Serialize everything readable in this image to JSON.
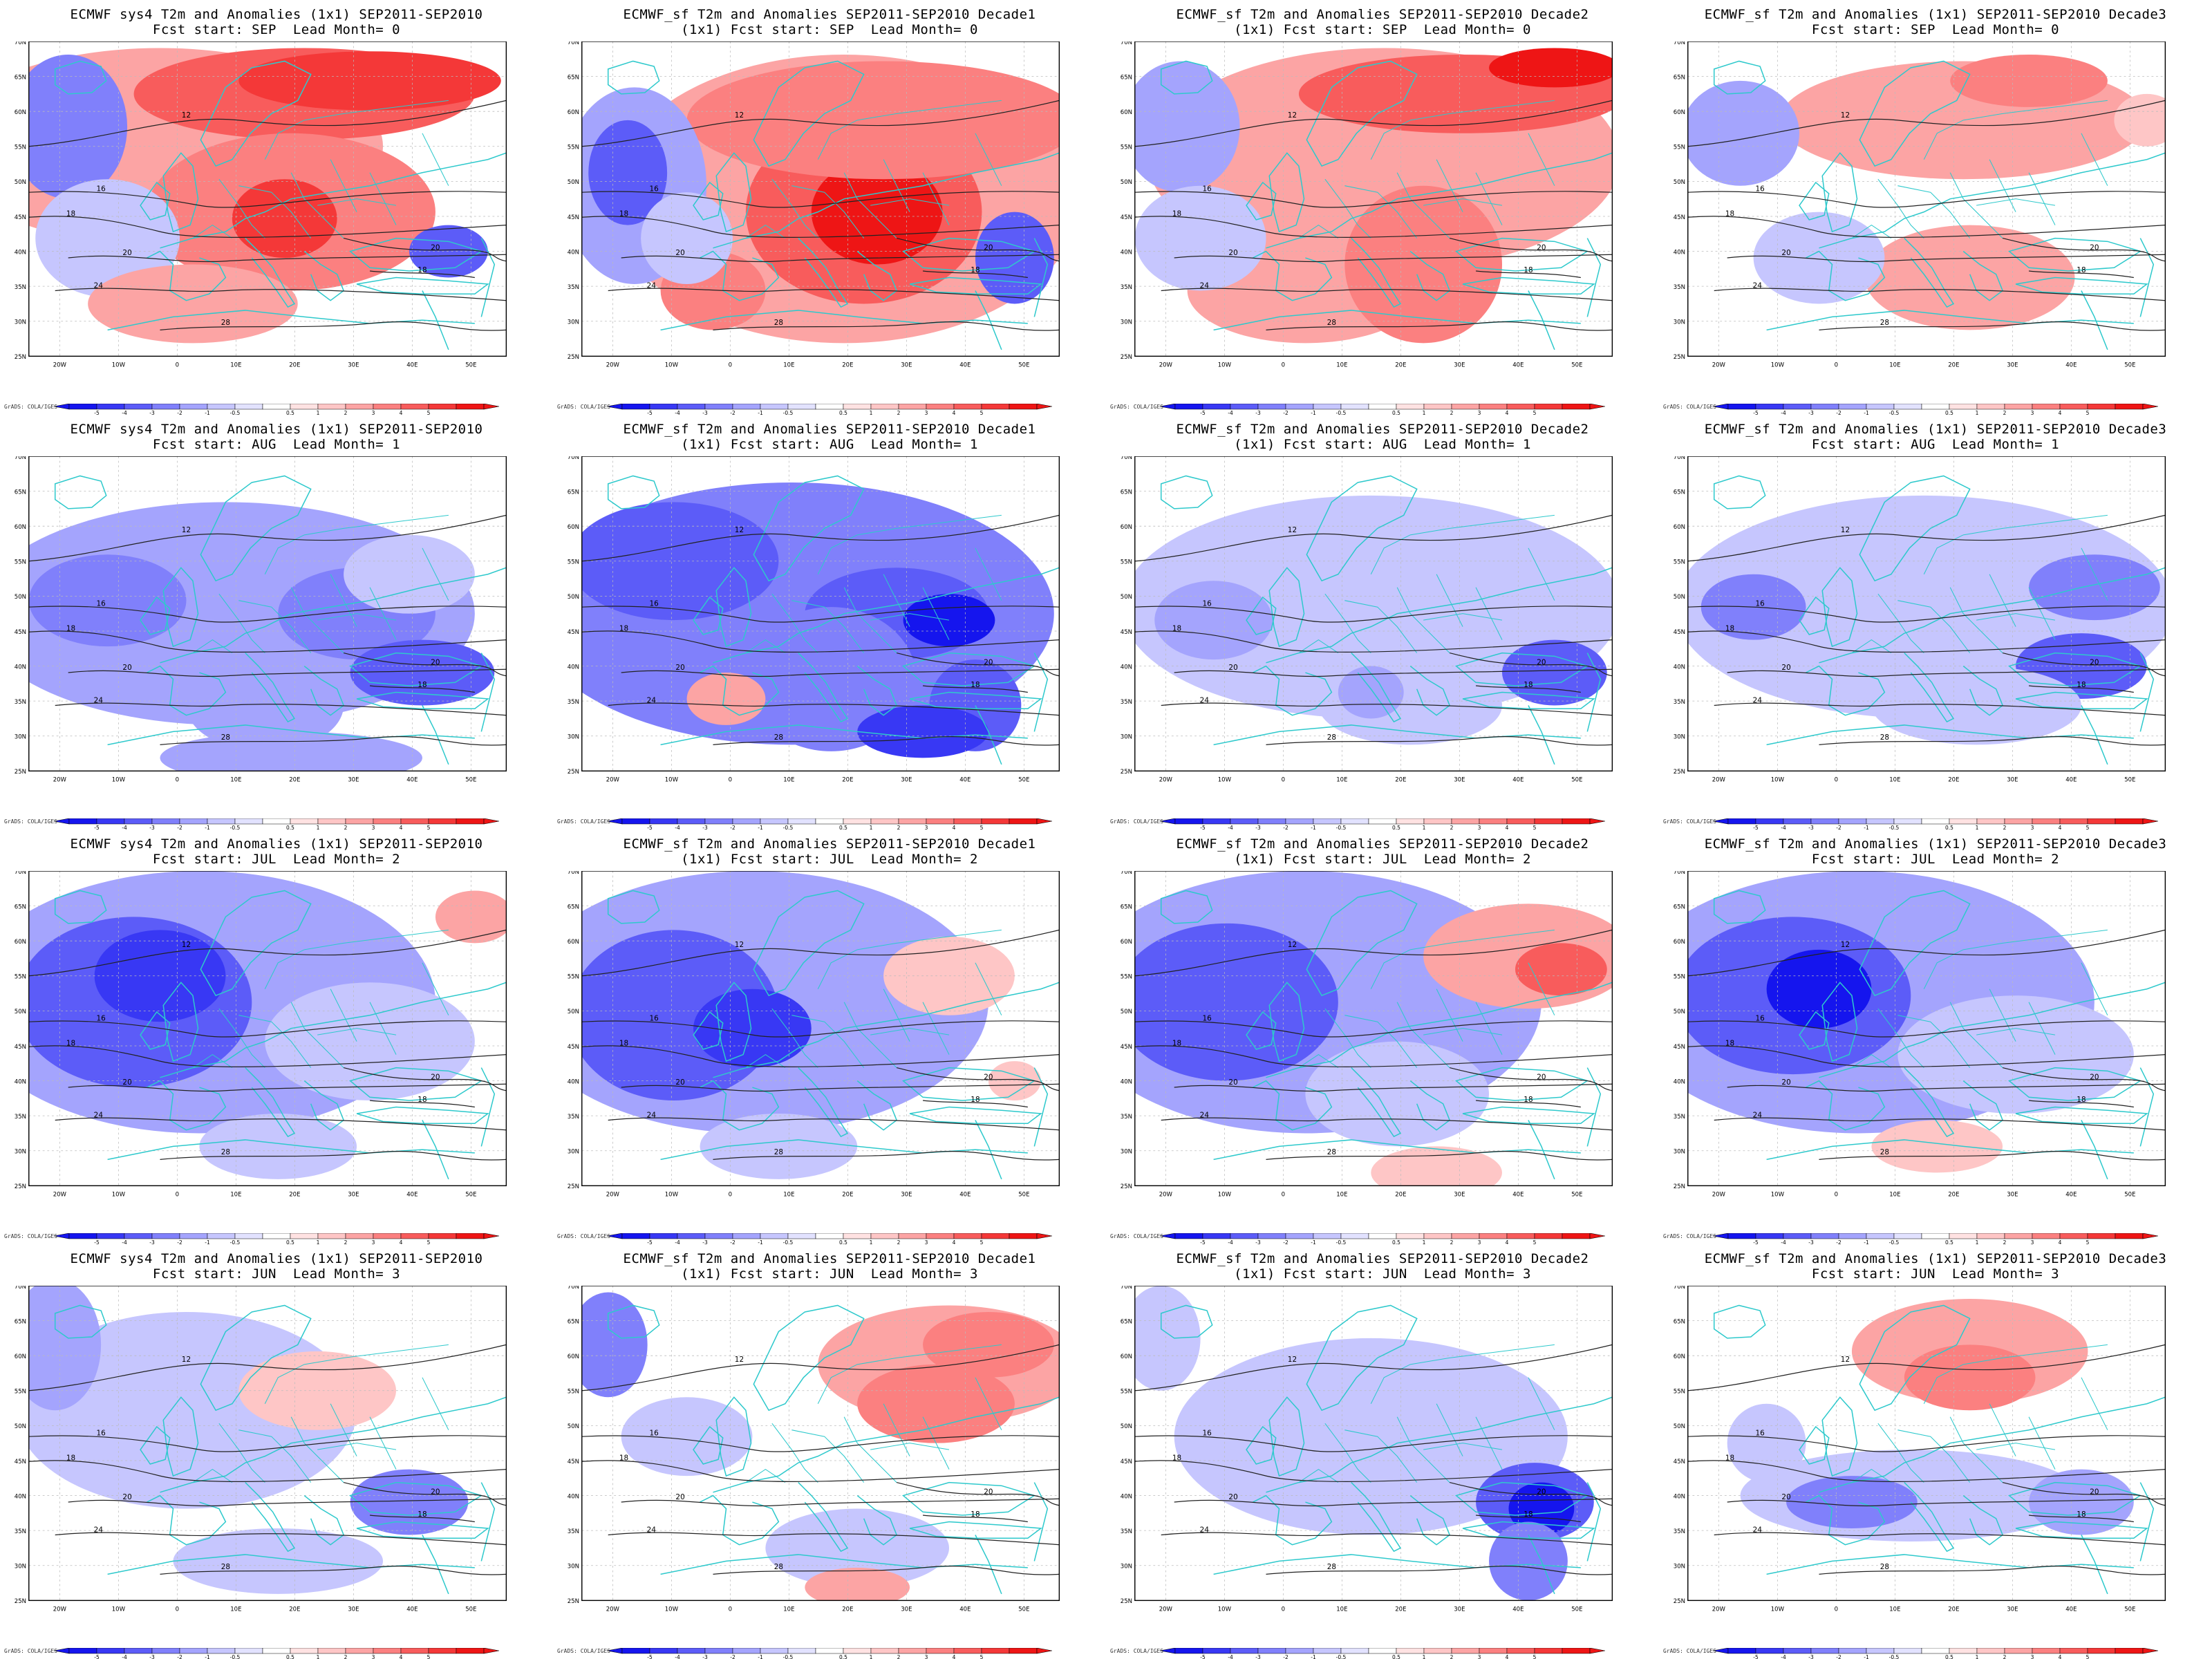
{
  "map_panels": [
    {
      "title1": "ECMWF sys4 T2m and Anomalies (1x1) SEP2011-SEP2010",
      "title2": "Fcst start: SEP  Lead Month= 0"
    },
    {
      "title1": "ECMWF_sf T2m and Anomalies SEP2011-SEP2010 Decade1",
      "title2": "(1x1) Fcst start: SEP  Lead Month= 0"
    },
    {
      "title1": "ECMWF_sf T2m and Anomalies SEP2011-SEP2010 Decade2",
      "title2": "(1x1) Fcst start: SEP  Lead Month= 0"
    },
    {
      "title1": "ECMWF_sf T2m and Anomalies (1x1) SEP2011-SEP2010 Decade3",
      "title2": "Fcst start: SEP  Lead Month= 0"
    },
    {
      "title1": "ECMWF sys4 T2m and Anomalies (1x1) SEP2011-SEP2010",
      "title2": "Fcst start: AUG  Lead Month= 1"
    },
    {
      "title1": "ECMWF_sf T2m and Anomalies SEP2011-SEP2010 Decade1",
      "title2": "(1x1) Fcst start: AUG  Lead Month= 1"
    },
    {
      "title1": "ECMWF_sf T2m and Anomalies SEP2011-SEP2010 Decade2",
      "title2": "(1x1) Fcst start: AUG  Lead Month= 1"
    },
    {
      "title1": "ECMWF_sf T2m and Anomalies (1x1) SEP2011-SEP2010 Decade3",
      "title2": "Fcst start: AUG  Lead Month= 1"
    },
    {
      "title1": "ECMWF sys4 T2m and Anomalies (1x1) SEP2011-SEP2010",
      "title2": "Fcst start: JUL  Lead Month= 2"
    },
    {
      "title1": "ECMWF_sf T2m and Anomalies SEP2011-SEP2010 Decade1",
      "title2": "(1x1) Fcst start: JUL  Lead Month= 2"
    },
    {
      "title1": "ECMWF_sf T2m and Anomalies SEP2011-SEP2010 Decade2",
      "title2": "(1x1) Fcst start: JUL  Lead Month= 2"
    },
    {
      "title1": "ECMWF_sf T2m and Anomalies (1x1) SEP2011-SEP2010 Decade3",
      "title2": "Fcst start: JUL  Lead Month= 2"
    },
    {
      "title1": "ECMWF sys4 T2m and Anomalies (1x1) SEP2011-SEP2010",
      "title2": "Fcst start: JUN  Lead Month= 3"
    },
    {
      "title1": "ECMWF_sf T2m and Anomalies SEP2011-SEP2010 Decade1",
      "title2": "(1x1) Fcst start: JUN  Lead Month= 3"
    },
    {
      "title1": "ECMWF_sf T2m and Anomalies SEP2011-SEP2010 Decade2",
      "title2": "(1x1) Fcst start: JUN  Lead Month= 3"
    },
    {
      "title1": "ECMWF_sf T2m and Anomalies (1x1) SEP2011-SEP2010 Decade3",
      "title2": "Fcst start: JUN  Lead Month= 3"
    }
  ],
  "lat_labels": [
    "70N",
    "65N",
    "60N",
    "55N",
    "50N",
    "45N",
    "40N",
    "35N",
    "30N",
    "25N"
  ],
  "lon_labels": [
    "20W",
    "10W",
    "0",
    "10E",
    "20E",
    "30E",
    "40E",
    "50E"
  ],
  "colorbar_labels": [
    "-5",
    "-4",
    "-3",
    "-2",
    "-1",
    "-0.5",
    "0.5",
    "1",
    "2",
    "3",
    "4",
    "5"
  ],
  "contour_labels": [
    "12",
    "16",
    "18",
    "20",
    "24",
    "28"
  ],
  "grads_label": "GrADS: COLA/IGES",
  "colors": {
    "coast": "#2ec9cc",
    "contour": "#222222",
    "blue": [
      "#1515ee",
      "#3838f4",
      "#5c5cf8",
      "#8080fb",
      "#a4a4fd",
      "#c6c6fe",
      "#e2e2ff"
    ],
    "red": [
      "#ffe2e2",
      "#fec6c6",
      "#fca4a4",
      "#fb8080",
      "#f85c5c",
      "#f43838",
      "#ee1515"
    ]
  }
}
